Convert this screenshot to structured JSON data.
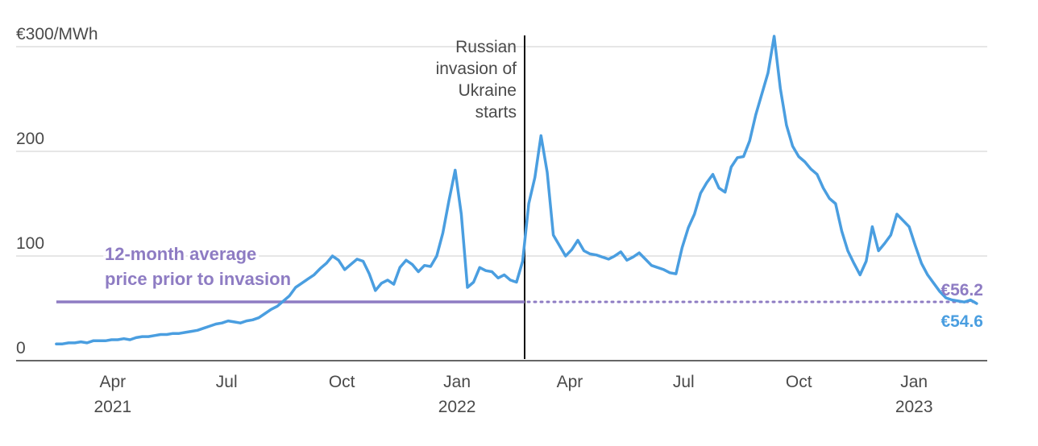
{
  "colors": {
    "price_line": "#4a9ee0",
    "average_line": "#8e7cc3",
    "gridline": "#cccccc",
    "axis": "#333333",
    "event_line": "#111111",
    "text": "#4a4a4a"
  },
  "chart_data": {
    "type": "line",
    "title": "",
    "xlabel": "",
    "ylabel": "",
    "x_start": "2021-02-15",
    "x_end": "2023-02-20",
    "xlim": [
      "2021-01-01",
      "2023-04-10"
    ],
    "ylim": [
      0,
      310
    ],
    "y_ticks": [
      {
        "value": 0,
        "label": "0"
      },
      {
        "value": 100,
        "label": "100"
      },
      {
        "value": 200,
        "label": "200"
      },
      {
        "value": 300,
        "label": "€300/MWh"
      }
    ],
    "x_ticks": [
      {
        "date": "2021-04-01",
        "label": "Apr",
        "year": "2021"
      },
      {
        "date": "2021-07-01",
        "label": "Jul",
        "year": ""
      },
      {
        "date": "2021-10-01",
        "label": "Oct",
        "year": ""
      },
      {
        "date": "2022-01-01",
        "label": "Jan",
        "year": "2022"
      },
      {
        "date": "2022-04-01",
        "label": "Apr",
        "year": ""
      },
      {
        "date": "2022-07-01",
        "label": "Jul",
        "year": ""
      },
      {
        "date": "2022-10-01",
        "label": "Oct",
        "year": ""
      },
      {
        "date": "2023-01-01",
        "label": "Jan",
        "year": "2023"
      }
    ],
    "grid": true,
    "series": [
      {
        "values": [
          16,
          16,
          17,
          17,
          18,
          17,
          19,
          19,
          19,
          20,
          20,
          21,
          20,
          22,
          23,
          23,
          24,
          25,
          25,
          26,
          26,
          27,
          28,
          29,
          31,
          33,
          35,
          36,
          38,
          37,
          36,
          38,
          39,
          41,
          45,
          49,
          52,
          57,
          62,
          70,
          74,
          78,
          82,
          88,
          93,
          100,
          96,
          87,
          92,
          97,
          95,
          83,
          67,
          74,
          77,
          73,
          89,
          96,
          92,
          85,
          91,
          90,
          100,
          122,
          153,
          182,
          140,
          70,
          75,
          89,
          86,
          85,
          79,
          82,
          77,
          75,
          95,
          150,
          175,
          215,
          180,
          120,
          110,
          100,
          106,
          115,
          105,
          102,
          101,
          99,
          97,
          100,
          104,
          96,
          99,
          103,
          97,
          91,
          89,
          87,
          84,
          83,
          108,
          127,
          140,
          160,
          170,
          178,
          165,
          161,
          185,
          194,
          195,
          210,
          235,
          255,
          275,
          310,
          260,
          225,
          205,
          195,
          190,
          183,
          178,
          165,
          155,
          150,
          124,
          105,
          93,
          82,
          95,
          128,
          105,
          112,
          120,
          140,
          134,
          128,
          110,
          93,
          82,
          74,
          66,
          60,
          58,
          57,
          56,
          58,
          54.6
        ]
      }
    ],
    "invasion_date": "2022-02-24",
    "invasion_annotation": [
      "Russian",
      "invasion of",
      "Ukraine",
      "starts"
    ],
    "average_value": 56.2,
    "average_label": [
      "12-month average",
      "price prior to invasion"
    ],
    "end_labels": {
      "average": "€56.2",
      "latest": "€54.6"
    }
  }
}
